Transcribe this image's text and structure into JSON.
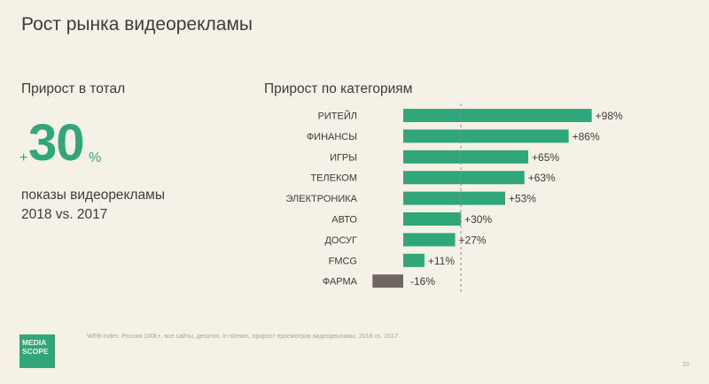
{
  "title": "Рост рынка видеорекламы",
  "left": {
    "heading": "Прирост в тотал",
    "plus": "+",
    "value": "30",
    "percent": "%",
    "desc_line1": "показы видеорекламы",
    "desc_line2": "2018 vs. 2017"
  },
  "right": {
    "heading": "Прирост по категориям"
  },
  "chart_data": {
    "type": "bar",
    "orientation": "horizontal",
    "categories": [
      "РИТЕЙЛ",
      "ФИНАНСЫ",
      "ИГРЫ",
      "ТЕЛЕКОМ",
      "ЭЛЕКТРОНИКА",
      "АВТО",
      "ДОСУГ",
      "FMCG",
      "ФАРМА"
    ],
    "values": [
      98,
      86,
      65,
      63,
      53,
      30,
      27,
      11,
      -16
    ],
    "value_labels": [
      "+98%",
      "+86%",
      "+65%",
      "+63%",
      "+53%",
      "+30%",
      "+27%",
      "+11%",
      "-16%"
    ],
    "reference_value": 30,
    "reference_line": "dashed",
    "colors": {
      "positive": "#2fa77a",
      "negative": "#6e6660",
      "reference": "#8c8c8c"
    }
  },
  "logo": {
    "line1": "MEDIA",
    "line2": "SCOPE"
  },
  "footnote": "WEB-Index. Россия 100k+, все сайты, десктоп, In-stream, прирост просмотров видеорекламы, 2018 vs. 2017",
  "page_number": "20"
}
